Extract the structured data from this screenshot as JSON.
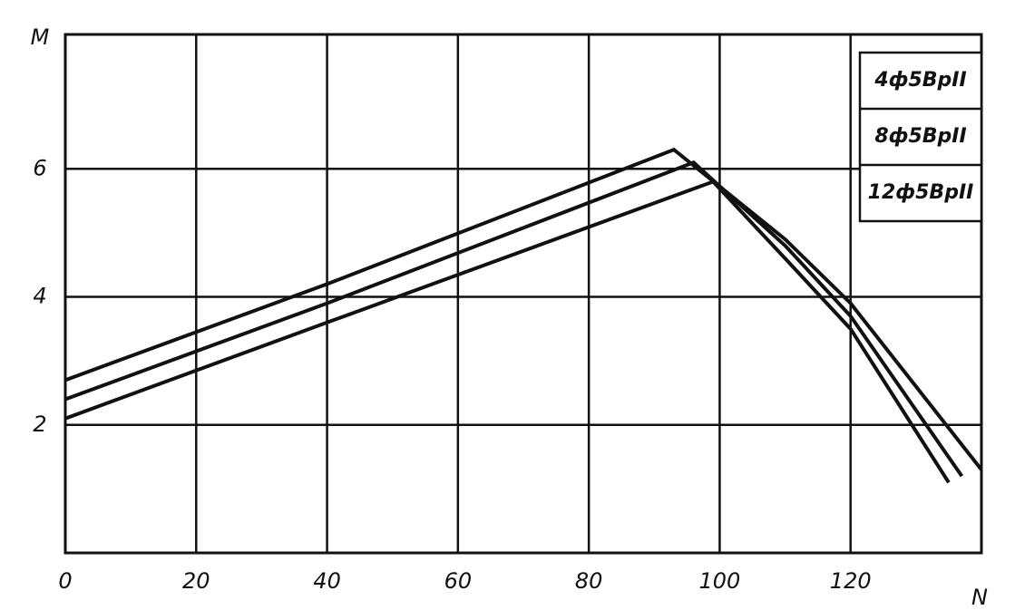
{
  "chart_data": {
    "type": "line",
    "x_label": "N",
    "y_label": "M",
    "xlim": [
      0,
      140
    ],
    "ylim": [
      0,
      8.1
    ],
    "xticks": [
      0,
      20,
      40,
      60,
      80,
      100,
      120
    ],
    "yticks": [
      2,
      4,
      6
    ],
    "grid": true,
    "legend": "top-right",
    "series": [
      {
        "name": "4ф5BpII",
        "color": "#111111",
        "x": [
          0,
          40,
          93,
          110,
          120,
          140
        ],
        "values": [
          2.7,
          4.2,
          6.3,
          4.9,
          3.9,
          1.3
        ]
      },
      {
        "name": "8ф5BpII",
        "color": "#111111",
        "x": [
          0,
          40,
          96,
          110,
          120,
          137
        ],
        "values": [
          2.4,
          3.9,
          6.1,
          4.8,
          3.7,
          1.2
        ]
      },
      {
        "name": "12ф5BpII",
        "color": "#111111",
        "x": [
          0,
          40,
          99,
          110,
          120,
          135
        ],
        "values": [
          2.1,
          3.6,
          5.8,
          4.6,
          3.5,
          1.1
        ]
      }
    ]
  }
}
